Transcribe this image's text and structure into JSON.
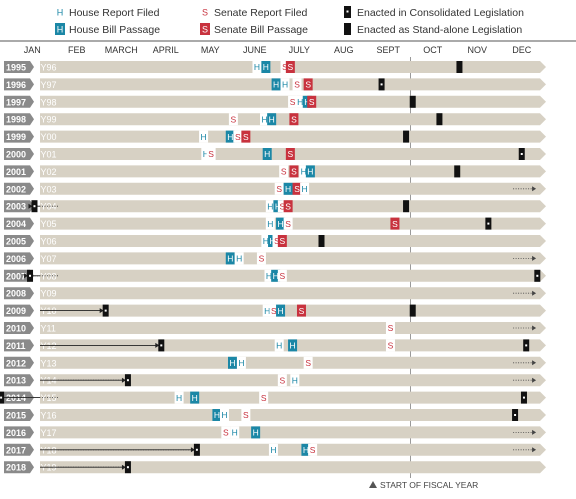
{
  "legend": {
    "house_report": "House Report Filed",
    "senate_report": "Senate Report Filed",
    "consolidated": "Enacted in Consolidated Legislation",
    "house_passage": "House Bill Passage",
    "senate_passage": "Senate Bill Passage",
    "standalone": "Enacted as Stand-alone Legislation"
  },
  "footer": "START OF FISCAL YEAR",
  "colors": {
    "band": "#d7d1c4",
    "year_tab": "#8a8a8a",
    "house": "#1b87a6",
    "senate": "#c8323e",
    "enacted": "#111111",
    "strike_line": "#222222"
  },
  "chart_data": {
    "type": "timeline",
    "months": [
      "JAN",
      "FEB",
      "MARCH",
      "APRIL",
      "MAY",
      "JUNE",
      "JULY",
      "AUG",
      "SEPT",
      "OCT",
      "NOV",
      "DEC"
    ],
    "marker_letters": {
      "house": "H",
      "senate": "S"
    },
    "marker_types": [
      "house_report",
      "house_passage",
      "senate_report",
      "senate_passage",
      "consolidated",
      "standalone"
    ],
    "date_units": "month of calendar year (1 = start of January); prior-year enactments shown before JAN",
    "fiscal_year_start": 10,
    "rows": [
      {
        "cal": "1995",
        "fy": "FY96",
        "events": [
          [
            "house_report",
            6.55
          ],
          [
            "house_passage",
            6.75
          ],
          [
            "senate_report",
            7.18
          ],
          [
            "senate_passage",
            7.3
          ],
          [
            "standalone",
            11.1
          ]
        ]
      },
      {
        "cal": "1996",
        "fy": "FY97",
        "events": [
          [
            "house_passage",
            6.98
          ],
          [
            "house_report",
            7.18
          ],
          [
            "senate_report",
            7.45
          ],
          [
            "senate_passage",
            7.7
          ],
          [
            "consolidated",
            9.35
          ]
        ]
      },
      {
        "cal": "1997",
        "fy": "FY98",
        "events": [
          [
            "senate_report",
            7.35
          ],
          [
            "house_report",
            7.52
          ],
          [
            "house_passage",
            7.68
          ],
          [
            "senate_passage",
            7.78
          ],
          [
            "standalone",
            10.05
          ]
        ]
      },
      {
        "cal": "1998",
        "fy": "FY99",
        "events": [
          [
            "senate_report",
            6.02
          ],
          [
            "house_report",
            6.72
          ],
          [
            "house_passage",
            6.88
          ],
          [
            "senate_passage",
            7.38
          ],
          [
            "standalone",
            10.65
          ]
        ]
      },
      {
        "cal": "1999",
        "fy": "FY00",
        "events": [
          [
            "house_report",
            5.35
          ],
          [
            "house_passage",
            5.95
          ],
          [
            "senate_report",
            6.12
          ],
          [
            "senate_passage",
            6.3
          ],
          [
            "standalone",
            9.9
          ]
        ]
      },
      {
        "cal": "2000",
        "fy": "FY01",
        "events": [
          [
            "house_report",
            5.4
          ],
          [
            "senate_report",
            5.52
          ],
          [
            "house_passage",
            6.78
          ],
          [
            "senate_passage",
            7.3
          ],
          [
            "consolidated",
            12.5
          ]
        ]
      },
      {
        "cal": "2001",
        "fy": "FY02",
        "events": [
          [
            "senate_report",
            7.15
          ],
          [
            "senate_passage",
            7.38
          ],
          [
            "house_report",
            7.6
          ],
          [
            "house_passage",
            7.75
          ],
          [
            "standalone",
            11.05
          ]
        ]
      },
      {
        "cal": "2002",
        "fy": "FY03",
        "events": [
          [
            "senate_report",
            7.05
          ],
          [
            "house_passage",
            7.25
          ],
          [
            "senate_passage",
            7.45
          ],
          [
            "house_report",
            7.62
          ],
          [
            "next_year",
            12.8
          ]
        ]
      },
      {
        "cal": "2003",
        "fy": "FY04",
        "events": [
          [
            "consolidated",
            1.55
          ],
          [
            "house_report",
            6.85
          ],
          [
            "house_passage",
            7.02
          ],
          [
            "senate_report",
            7.12
          ],
          [
            "senate_passage",
            7.25
          ],
          [
            "standalone",
            9.9
          ]
        ]
      },
      {
        "cal": "2004",
        "fy": "FY05",
        "events": [
          [
            "house_report",
            6.85
          ],
          [
            "house_passage",
            7.08
          ],
          [
            "senate_report",
            7.25
          ],
          [
            "senate_passage",
            9.65
          ],
          [
            "consolidated",
            11.75
          ]
        ]
      },
      {
        "cal": "2005",
        "fy": "FY06",
        "events": [
          [
            "house_report",
            6.75
          ],
          [
            "house_passage",
            6.9
          ],
          [
            "senate_report",
            7.0
          ],
          [
            "senate_passage",
            7.12
          ],
          [
            "standalone",
            8.0
          ]
        ]
      },
      {
        "cal": "2006",
        "fy": "FY07",
        "events": [
          [
            "house_passage",
            5.95
          ],
          [
            "house_report",
            6.15
          ],
          [
            "senate_report",
            6.65
          ],
          [
            "next_year",
            12.8
          ]
        ]
      },
      {
        "cal": "2007",
        "fy": "FY08",
        "events": [
          [
            "consolidated",
            1.45
          ],
          [
            "house_report",
            6.82
          ],
          [
            "house_passage",
            6.97
          ],
          [
            "senate_report",
            7.12
          ],
          [
            "consolidated",
            12.85
          ]
        ]
      },
      {
        "cal": "2008",
        "fy": "FY09",
        "events": [
          [
            "next_year",
            12.8
          ]
        ]
      },
      {
        "cal": "2009",
        "fy": "FY10",
        "events": [
          [
            "consolidated",
            3.15
          ],
          [
            "house_report",
            6.78
          ],
          [
            "senate_report",
            6.93
          ],
          [
            "house_passage",
            7.08
          ],
          [
            "senate_passage",
            7.55
          ],
          [
            "standalone",
            10.05
          ]
        ]
      },
      {
        "cal": "2010",
        "fy": "FY11",
        "events": [
          [
            "senate_report",
            9.55
          ],
          [
            "next_year",
            12.8
          ]
        ]
      },
      {
        "cal": "2011",
        "fy": "FY12",
        "events": [
          [
            "consolidated",
            4.4
          ],
          [
            "house_report",
            7.05
          ],
          [
            "house_passage",
            7.35
          ],
          [
            "senate_report",
            9.55
          ],
          [
            "consolidated",
            12.6
          ]
        ]
      },
      {
        "cal": "2012",
        "fy": "FY13",
        "events": [
          [
            "house_passage",
            6.0
          ],
          [
            "house_report",
            6.2
          ],
          [
            "senate_report",
            7.7
          ],
          [
            "next_year",
            12.8
          ]
        ]
      },
      {
        "cal": "2013",
        "fy": "FY14",
        "events": [
          [
            "consolidated",
            3.65
          ],
          [
            "senate_report",
            7.12
          ],
          [
            "house_report",
            7.4
          ],
          [
            "next_year",
            12.8
          ]
        ]
      },
      {
        "cal": "2014",
        "fy": "FY15",
        "events": [
          [
            "consolidated",
            0.8
          ],
          [
            "house_report",
            4.8
          ],
          [
            "house_passage",
            5.15
          ],
          [
            "senate_report",
            6.7
          ],
          [
            "consolidated",
            12.55
          ]
        ]
      },
      {
        "cal": "2015",
        "fy": "FY16",
        "events": [
          [
            "house_passage",
            5.65
          ],
          [
            "house_report",
            5.82
          ],
          [
            "senate_report",
            6.3
          ],
          [
            "consolidated",
            12.35
          ]
        ]
      },
      {
        "cal": "2016",
        "fy": "FY17",
        "events": [
          [
            "senate_report",
            5.85
          ],
          [
            "house_report",
            6.05
          ],
          [
            "house_passage",
            6.52
          ],
          [
            "next_year",
            12.8
          ]
        ]
      },
      {
        "cal": "2017",
        "fy": "FY18",
        "events": [
          [
            "consolidated",
            5.2
          ],
          [
            "house_report",
            6.92
          ],
          [
            "house_passage",
            7.65
          ],
          [
            "senate_report",
            7.8
          ],
          [
            "next_year",
            12.8
          ]
        ]
      },
      {
        "cal": "2018",
        "fy": "FY19",
        "events": [
          [
            "consolidated",
            3.65
          ]
        ]
      }
    ]
  }
}
